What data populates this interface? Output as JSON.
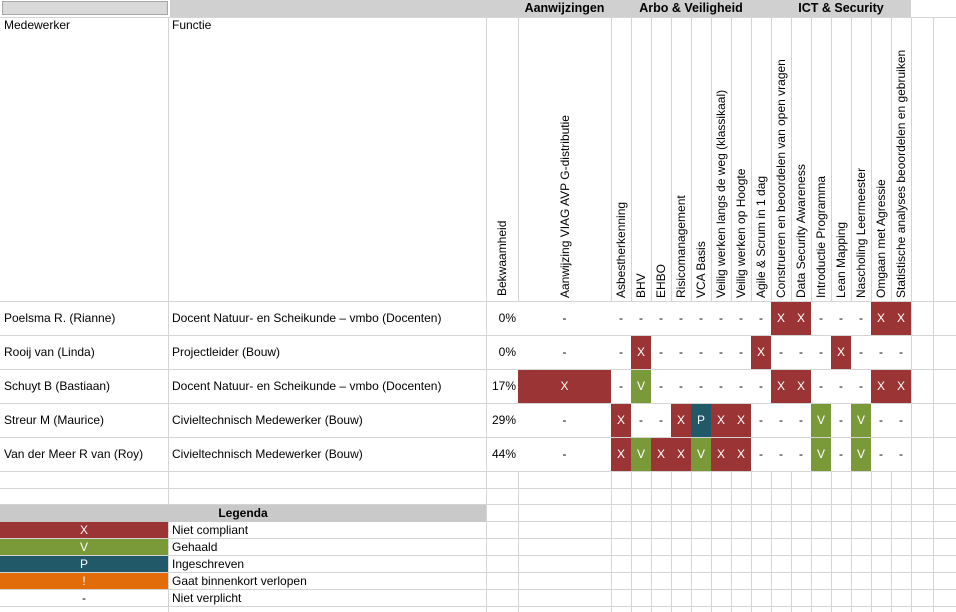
{
  "header": {
    "col_employee": "Medewerker",
    "col_function": "Functie",
    "col_competence": "Bekwaamheid",
    "groups": [
      {
        "label": "Aanwijzingen"
      },
      {
        "label": "Arbo & Veiligheid"
      },
      {
        "label": "ICT & Security"
      }
    ],
    "courses": [
      "Aanwijzing VIAG AVP G-distributie",
      "Asbestherkenning",
      "BHV",
      "EHBO",
      "Risicomanagement",
      "VCA Basis",
      "Veilig werken langs de weg (klassikaal)",
      "Veilig werken op Hoogte",
      "Agile & Scrum in 1 dag",
      "Construeren en beoordelen van open vragen",
      "Data Security Awareness",
      "Introductie Programma",
      "Lean Mapping",
      "Nascholing Leermeester",
      "Omgaan met Agressie",
      "Statistische analyses beoordelen en gebruiken"
    ]
  },
  "rows": [
    {
      "name": "Poelsma R. (Rianne)",
      "function": "Docent Natuur- en Scheikunde – vmbo (Docenten)",
      "pct": "0%",
      "marks": [
        "-",
        "-",
        "-",
        "-",
        "-",
        "-",
        "-",
        "-",
        "-",
        "X",
        "X",
        "-",
        "-",
        "-",
        "X",
        "X"
      ]
    },
    {
      "name": "Rooij van (Linda)",
      "function": "Projectleider (Bouw)",
      "pct": "0%",
      "marks": [
        "-",
        "-",
        "X",
        "-",
        "-",
        "-",
        "-",
        "-",
        "X",
        "-",
        "-",
        "-",
        "X",
        "-",
        "-",
        "-"
      ]
    },
    {
      "name": "Schuyt B (Bastiaan)",
      "function": "Docent Natuur- en Scheikunde – vmbo (Docenten)",
      "pct": "17%",
      "marks": [
        "X",
        "-",
        "V",
        "-",
        "-",
        "-",
        "-",
        "-",
        "-",
        "X",
        "X",
        "-",
        "-",
        "-",
        "X",
        "X"
      ]
    },
    {
      "name": "Streur M (Maurice)",
      "function": "Civieltechnisch Medewerker (Bouw)",
      "pct": "29%",
      "marks": [
        "-",
        "X",
        "-",
        "-",
        "X",
        "P",
        "X",
        "X",
        "-",
        "-",
        "-",
        "V",
        "-",
        "V",
        "-",
        "-"
      ]
    },
    {
      "name": "Van der Meer R van (Roy)",
      "function": "Civieltechnisch Medewerker (Bouw)",
      "pct": "44%",
      "marks": [
        "-",
        "X",
        "V",
        "X",
        "X",
        "V",
        "X",
        "X",
        "-",
        "-",
        "-",
        "V",
        "-",
        "V",
        "-",
        "-"
      ]
    }
  ],
  "status_colors": {
    "X": "#9b3434",
    "V": "#7a9a3a",
    "P": "#215968",
    "!": "#e26b0a",
    "-": "#ffffff"
  },
  "legend": {
    "title": "Legenda",
    "items": [
      {
        "symbol": "X",
        "label": "Niet compliant"
      },
      {
        "symbol": "V",
        "label": "Gehaald"
      },
      {
        "symbol": "P",
        "label": "Ingeschreven"
      },
      {
        "symbol": "!",
        "label": "Gaat binnenkort verlopen"
      },
      {
        "symbol": "-",
        "label": "Niet verplicht"
      }
    ]
  }
}
